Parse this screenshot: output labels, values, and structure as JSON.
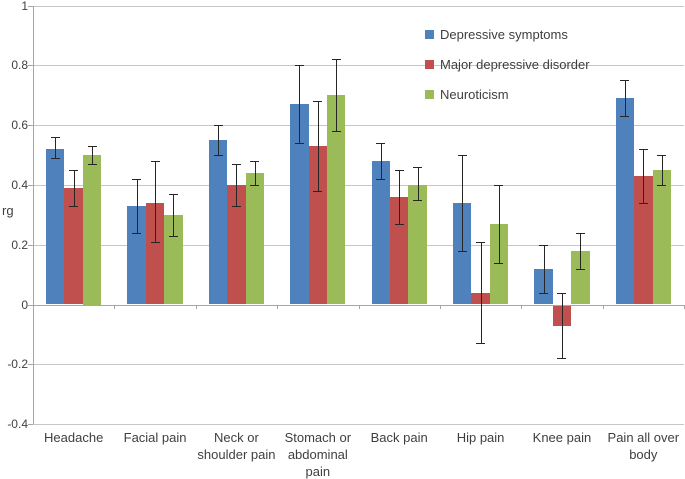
{
  "chart_data": {
    "type": "bar",
    "title": "",
    "xlabel": "",
    "ylabel": "rg",
    "ylim": [
      -0.4,
      1.0
    ],
    "grid": "horizontal",
    "legend_position": "inside-top-right",
    "ytick_labels": [
      "1",
      "0.8",
      "0.6",
      "0.4",
      "0.2",
      "0",
      "-0.2",
      "-0.4"
    ],
    "categories": [
      [
        "Headache"
      ],
      [
        "Facial pain"
      ],
      [
        "Neck or",
        "shoulder pain"
      ],
      [
        "Stomach or",
        "abdominal",
        "pain"
      ],
      [
        "Back pain"
      ],
      [
        "Hip pain"
      ],
      [
        "Knee pain"
      ],
      [
        "Pain all over",
        "body"
      ]
    ],
    "series": [
      {
        "name": "Depressive symptoms",
        "color": "#4F81BD",
        "values": [
          0.52,
          0.33,
          0.55,
          0.67,
          0.48,
          0.34,
          0.12,
          0.69
        ],
        "ci_low": [
          0.49,
          0.24,
          0.5,
          0.54,
          0.42,
          0.18,
          0.04,
          0.63
        ],
        "ci_high": [
          0.56,
          0.42,
          0.6,
          0.8,
          0.54,
          0.5,
          0.2,
          0.75
        ]
      },
      {
        "name": "Major depressive disorder",
        "color": "#C0504D",
        "values": [
          0.39,
          0.34,
          0.4,
          0.53,
          0.36,
          0.04,
          -0.07,
          0.43
        ],
        "ci_low": [
          0.33,
          0.21,
          0.33,
          0.38,
          0.27,
          -0.13,
          -0.18,
          0.34
        ],
        "ci_high": [
          0.45,
          0.48,
          0.47,
          0.68,
          0.45,
          0.21,
          0.04,
          0.52
        ]
      },
      {
        "name": "Neuroticism",
        "color": "#9BBB59",
        "values": [
          0.5,
          0.3,
          0.44,
          0.7,
          0.4,
          0.27,
          0.18,
          0.45
        ],
        "ci_low": [
          0.47,
          0.23,
          0.4,
          0.58,
          0.35,
          0.14,
          0.12,
          0.4
        ],
        "ci_high": [
          0.53,
          0.37,
          0.48,
          0.82,
          0.46,
          0.4,
          0.24,
          0.5
        ]
      }
    ]
  },
  "style": {
    "background": "#FFFFFF",
    "grid_color": "#C6C6C6",
    "axis_color": "#A6A6A6",
    "error_bar_color": "#262626",
    "text_color": "#3F3F3F"
  }
}
